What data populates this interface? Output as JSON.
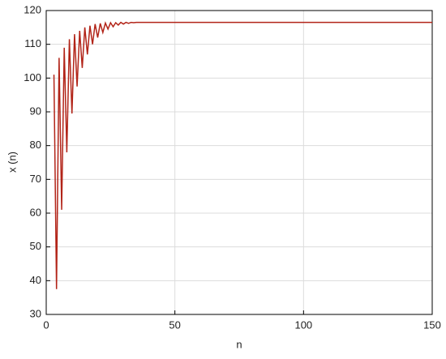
{
  "chart_data": {
    "type": "line",
    "xlabel": "n",
    "ylabel": "x (n)",
    "x": [
      3,
      4,
      5,
      6,
      7,
      8,
      9,
      10,
      11,
      12,
      13,
      14,
      15,
      16,
      17,
      18,
      19,
      20,
      21,
      22,
      23,
      24,
      25,
      26,
      27,
      28,
      29,
      30,
      31,
      32,
      33,
      34,
      35,
      40,
      50,
      100,
      150
    ],
    "series": [
      {
        "name": "x(n)",
        "color": "#b22418",
        "values": [
          101,
          37.5,
          106,
          61,
          109,
          78,
          111.5,
          89.5,
          113,
          97.5,
          114,
          103,
          115,
          107,
          115.5,
          110,
          116,
          112,
          116.2,
          113.5,
          116.3,
          114.5,
          116.4,
          115.2,
          116.4,
          115.7,
          116.5,
          116,
          116.5,
          116.2,
          116.5,
          116.4,
          116.5,
          116.5,
          116.5,
          116.5,
          116.5
        ]
      }
    ],
    "xlim": [
      0,
      150
    ],
    "xticks": [
      0,
      50,
      100,
      150
    ],
    "ylim": [
      30,
      120
    ],
    "yticks": [
      30,
      40,
      50,
      60,
      70,
      80,
      90,
      100,
      110,
      120
    ],
    "grid": true
  }
}
